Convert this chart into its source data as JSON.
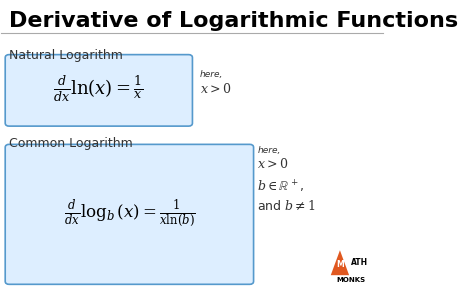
{
  "title": "Derivative of Logarithmic Functions",
  "bg_color": "#ffffff",
  "title_color": "#000000",
  "title_fontsize": 16,
  "section1_label": "Natural Logarithm",
  "section2_label": "Common Logarithm",
  "box_facecolor": "#ddeeff",
  "box_edgecolor": "#5599cc",
  "note1_here": "here,",
  "note1_cond": "$x > 0$",
  "note2_here": "here,",
  "note2_cond1": "$x > 0$",
  "note2_cond2": "$b \\in \\mathbb{R}^+$,",
  "note2_cond3": "and $b \\neq 1$",
  "triangle_color": "#e05820",
  "label_color": "#333333",
  "formula_color": "#000000",
  "line_color": "#aaaaaa"
}
